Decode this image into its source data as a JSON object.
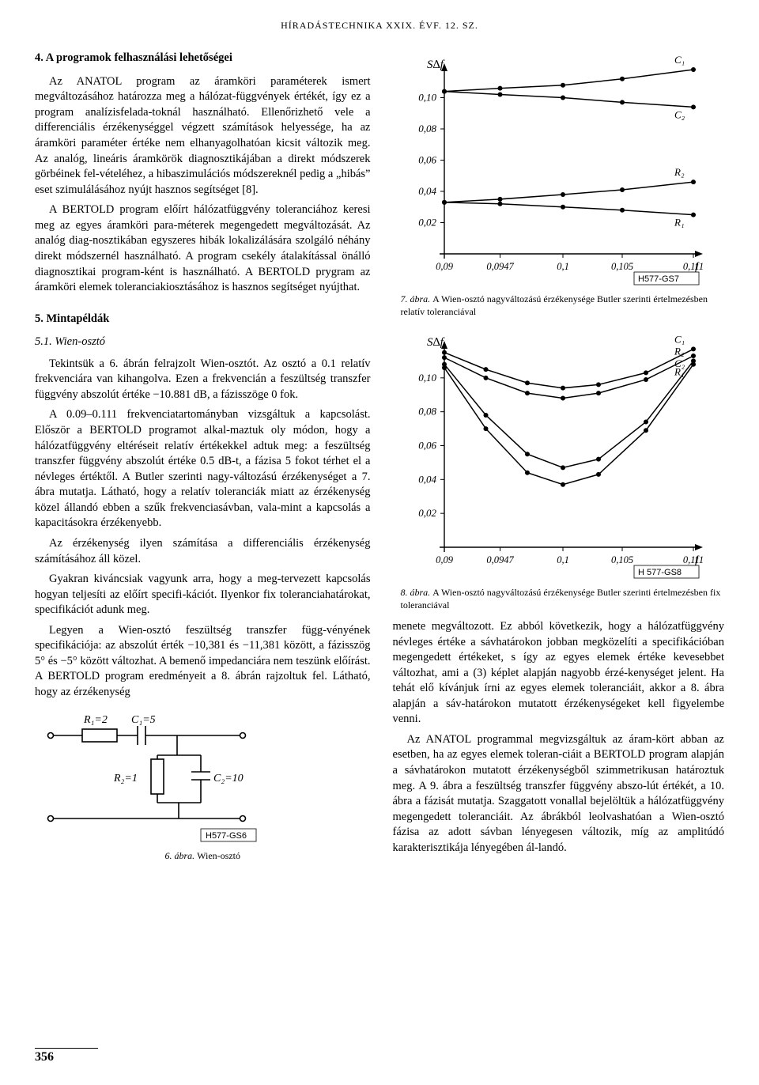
{
  "page_header": "HÍRADÁSTECHNIKA XXIX. ÉVF. 12. SZ.",
  "page_number": "356",
  "heading_4": "4. A programok felhasználási lehetőségei",
  "para_4a": "Az ANATOL program az áramköri paraméterek ismert megváltozásához határozza meg a hálózat-függvények értékét, így ez a program analízisfelada-toknál használható. Ellenőrizhető vele a differenciális érzékenységgel végzett számítások helyessége, ha az áramköri paraméter értéke nem elhanyagolhatóan kicsit változik meg. Az analóg, lineáris áramkörök diagnosztikájában a direkt módszerek görbéinek fel-vételéhez, a hibaszimulációs módszereknél pedig a „hibás” eset szimulálásához nyújt hasznos segítséget [8].",
  "para_4b": "A BERTOLD program előírt hálózatfüggvény toleranciához keresi meg az egyes áramköri para-méterek megengedett megváltozását. Az analóg diag-nosztikában egyszeres hibák lokalizálására szolgáló néhány direkt módszernél használható. A program csekély átalakítással önálló diagnosztikai program-ként is használható. A BERTOLD prygram az áramköri elemek toleranciakiosztásához is hasznos segítséget nyújthat.",
  "heading_5": "5. Mintapéldák",
  "heading_51": "5.1. Wien-osztó",
  "para_51a": "Tekintsük a 6. ábrán felrajzolt Wien-osztót. Az osztó a 0.1 relatív frekvenciára van kihangolva. Ezen a frekvencián a feszültség transzfer függvény abszolút értéke −10.881 dB, a fázisszöge 0 fok.",
  "para_51b": "A 0.09–0.111 frekvenciatartományban vizsgáltuk a kapcsolást. Először a BERTOLD programot alkal-maztuk oly módon, hogy a hálózatfüggvény eltéréseit relatív értékekkel adtuk meg: a feszültség transzfer függvény abszolút értéke 0.5 dB-t, a fázisa 5 fokot térhet el a névleges értéktől. A Butler szerinti nagy-változású érzékenységet a 7. ábra mutatja. Látható, hogy a relatív toleranciák miatt az érzékenység közel állandó ebben a szűk frekvenciasávban, vala-mint a kapcsolás a kapacitásokra érzékenyebb.",
  "para_51c": "Az érzékenység ilyen számítása a differenciális érzékenység számításához áll közel.",
  "para_51d": "Gyakran kiváncsiak vagyunk arra, hogy a meg-tervezett kapcsolás hogyan teljesíti az előírt specifi-kációt. Ilyenkor fix toleranciahatárokat, specifikációt adunk meg.",
  "para_51e": "Legyen a Wien-osztó feszültség transzfer függ-vényének specifikációja: az abszolút érték −10,381 és −11,381 között, a fázisszög 5° és −5° között változhat. A bemenő impedanciára nem teszünk előírást. A BERTOLD program eredményeit a 8. ábrán rajzoltuk fel. Látható, hogy az érzékenység",
  "para_rt1": "menete megváltozott. Ez abból következik, hogy a hálózatfüggvény névleges értéke a sávhatárokon jobban megközelíti a specifikációban megengedett értékeket, s így az egyes elemek értéke kevesebbet változhat, ami a (3) képlet alapján nagyobb érzé-kenységet jelent. Ha tehát elő kívánjuk írni az egyes elemek toleranciáit, akkor a 8. ábra alapján a sáv-határokon mutatott érzékenységeket kell figyelembe venni.",
  "para_rt2": "Az ANATOL programmal megvizsgáltuk az áram-kört abban az esetben, ha az egyes elemek toleran-ciáit a BERTOLD program alapján a sávhatárokon mutatott érzékenységből szimmetrikusan határoztuk meg. A 9. ábra a feszültség transzfer függvény abszo-lút értékét, a 10. ábra a fázisát mutatja. Szaggatott vonallal bejelöltük a hálózatfüggvény megengedett toleranciáit. Az ábrákból leolvashatóan a Wien-osztó fázisa az adott sávban lényegesen változik, míg az amplitúdó karakterisztikája lényegében ál-landó.",
  "fig6": {
    "caption_num": "6. ábra.",
    "caption_txt": "Wien-osztó",
    "box_label": "H577-GS6",
    "R1_label": "R₁=2",
    "C1_label": "C₁=5",
    "R2_label": "R₂=1",
    "C2_label": "C₂=10",
    "stroke": "#000000"
  },
  "fig7": {
    "caption_num": "7. ábra.",
    "caption_txt": "A Wien-osztó nagyváltozású érzékenysége Butler szerinti értelmezésben relatív toleranciával",
    "box_label": "H577-GS7",
    "ylabel": "S∆f",
    "xlabel": "f",
    "ytick_labels": [
      "0,10",
      "0,08",
      "0,06",
      "0,04",
      "0,02"
    ],
    "ytick_values": [
      0.1,
      0.08,
      0.06,
      0.04,
      0.02
    ],
    "xtick_labels": [
      "0,09",
      "0,0947",
      "0,1",
      "0,105",
      "0,111"
    ],
    "xtick_values": [
      0.09,
      0.0947,
      0.1,
      0.105,
      0.111
    ],
    "series": {
      "C1": {
        "label": "C₁",
        "points": [
          [
            0.09,
            0.104
          ],
          [
            0.0947,
            0.106
          ],
          [
            0.1,
            0.108
          ],
          [
            0.105,
            0.112
          ],
          [
            0.111,
            0.118
          ]
        ]
      },
      "C2": {
        "label": "C₂",
        "points": [
          [
            0.09,
            0.104
          ],
          [
            0.0947,
            0.102
          ],
          [
            0.1,
            0.1
          ],
          [
            0.105,
            0.097
          ],
          [
            0.111,
            0.094
          ]
        ]
      },
      "R2": {
        "label": "R₂",
        "points": [
          [
            0.09,
            0.033
          ],
          [
            0.0947,
            0.035
          ],
          [
            0.1,
            0.038
          ],
          [
            0.105,
            0.041
          ],
          [
            0.111,
            0.046
          ]
        ]
      },
      "R1": {
        "label": "R₁",
        "points": [
          [
            0.09,
            0.033
          ],
          [
            0.0947,
            0.032
          ],
          [
            0.1,
            0.03
          ],
          [
            0.105,
            0.028
          ],
          [
            0.111,
            0.025
          ]
        ]
      }
    },
    "stroke": "#000000",
    "marker_size": 3
  },
  "fig8": {
    "caption_num": "8. ábra.",
    "caption_txt": "A Wien-osztó nagyváltozású érzékenysége Butler szerinti értelmezésben fix toleranciával",
    "box_label": "H 577-GS8",
    "ylabel": "S∆f",
    "xlabel": "f",
    "ytick_labels": [
      "0,10",
      "0,08",
      "0,06",
      "0,04",
      "0,02"
    ],
    "ytick_values": [
      0.1,
      0.08,
      0.06,
      0.04,
      0.02
    ],
    "xtick_labels": [
      "0,09",
      "0,0947",
      "0,1",
      "0,105",
      "0,111"
    ],
    "xtick_values": [
      0.09,
      0.0947,
      0.1,
      0.105,
      0.111
    ],
    "series": {
      "C1": {
        "label": "C₁",
        "points": [
          [
            0.09,
            0.115
          ],
          [
            0.0935,
            0.105
          ],
          [
            0.097,
            0.097
          ],
          [
            0.1,
            0.094
          ],
          [
            0.103,
            0.096
          ],
          [
            0.107,
            0.103
          ],
          [
            0.111,
            0.117
          ]
        ]
      },
      "C2": {
        "label": "C₂",
        "points": [
          [
            0.09,
            0.112
          ],
          [
            0.0935,
            0.1
          ],
          [
            0.097,
            0.091
          ],
          [
            0.1,
            0.088
          ],
          [
            0.103,
            0.091
          ],
          [
            0.107,
            0.099
          ],
          [
            0.111,
            0.113
          ]
        ]
      },
      "R2": {
        "label": "R₂",
        "points": [
          [
            0.09,
            0.108
          ],
          [
            0.0935,
            0.078
          ],
          [
            0.097,
            0.055
          ],
          [
            0.1,
            0.047
          ],
          [
            0.103,
            0.052
          ],
          [
            0.107,
            0.074
          ],
          [
            0.111,
            0.11
          ]
        ]
      },
      "R1": {
        "label": "R₁",
        "points": [
          [
            0.09,
            0.106
          ],
          [
            0.0935,
            0.07
          ],
          [
            0.097,
            0.044
          ],
          [
            0.1,
            0.037
          ],
          [
            0.103,
            0.043
          ],
          [
            0.107,
            0.069
          ],
          [
            0.111,
            0.108
          ]
        ]
      }
    },
    "stroke": "#000000",
    "marker_size": 3
  }
}
